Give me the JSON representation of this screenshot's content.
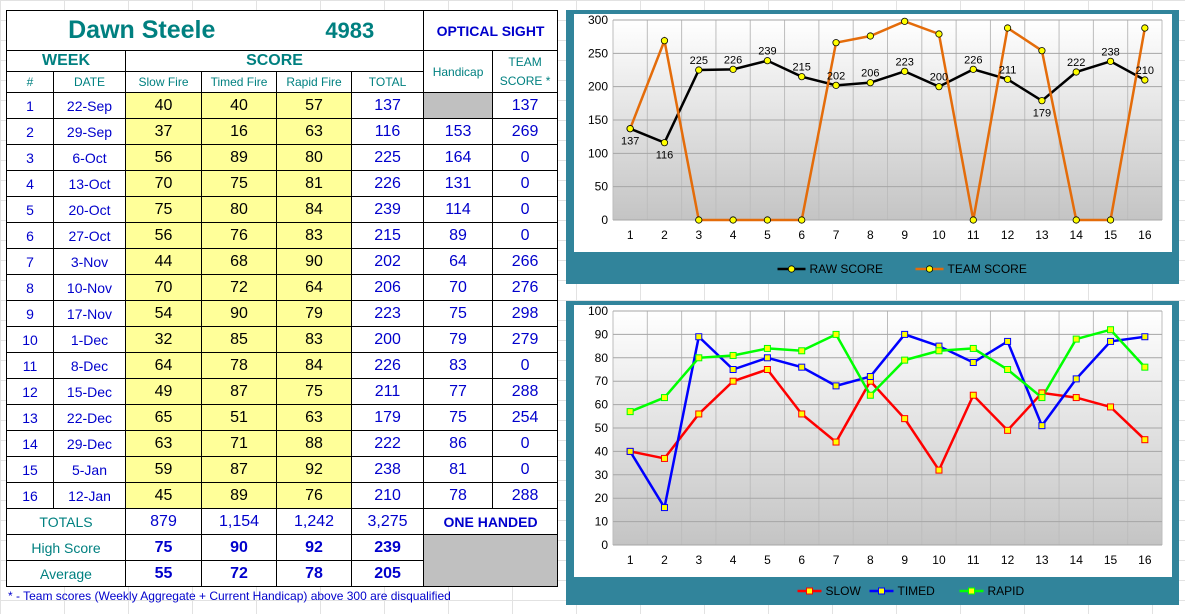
{
  "header": {
    "name": "Dawn Steele",
    "id": "4983",
    "sight": "OPTICAL SIGHT",
    "week": "WEEK",
    "score": "SCORE",
    "handicap": "Handicap",
    "team_score": "TEAM SCORE *",
    "col_num": "#",
    "col_date": "DATE",
    "col_slow": "Slow Fire",
    "col_timed": "Timed Fire",
    "col_rapid": "Rapid Fire",
    "col_total": "TOTAL"
  },
  "rows": [
    {
      "n": "1",
      "date": "22-Sep",
      "slow": "40",
      "timed": "40",
      "rapid": "57",
      "total": "137",
      "hcp": "",
      "team": "137"
    },
    {
      "n": "2",
      "date": "29-Sep",
      "slow": "37",
      "timed": "16",
      "rapid": "63",
      "total": "116",
      "hcp": "153",
      "team": "269"
    },
    {
      "n": "3",
      "date": "6-Oct",
      "slow": "56",
      "timed": "89",
      "rapid": "80",
      "total": "225",
      "hcp": "164",
      "team": "0"
    },
    {
      "n": "4",
      "date": "13-Oct",
      "slow": "70",
      "timed": "75",
      "rapid": "81",
      "total": "226",
      "hcp": "131",
      "team": "0"
    },
    {
      "n": "5",
      "date": "20-Oct",
      "slow": "75",
      "timed": "80",
      "rapid": "84",
      "total": "239",
      "hcp": "114",
      "team": "0"
    },
    {
      "n": "6",
      "date": "27-Oct",
      "slow": "56",
      "timed": "76",
      "rapid": "83",
      "total": "215",
      "hcp": "89",
      "team": "0"
    },
    {
      "n": "7",
      "date": "3-Nov",
      "slow": "44",
      "timed": "68",
      "rapid": "90",
      "total": "202",
      "hcp": "64",
      "team": "266"
    },
    {
      "n": "8",
      "date": "10-Nov",
      "slow": "70",
      "timed": "72",
      "rapid": "64",
      "total": "206",
      "hcp": "70",
      "team": "276"
    },
    {
      "n": "9",
      "date": "17-Nov",
      "slow": "54",
      "timed": "90",
      "rapid": "79",
      "total": "223",
      "hcp": "75",
      "team": "298"
    },
    {
      "n": "10",
      "date": "1-Dec",
      "slow": "32",
      "timed": "85",
      "rapid": "83",
      "total": "200",
      "hcp": "79",
      "team": "279"
    },
    {
      "n": "11",
      "date": "8-Dec",
      "slow": "64",
      "timed": "78",
      "rapid": "84",
      "total": "226",
      "hcp": "83",
      "team": "0"
    },
    {
      "n": "12",
      "date": "15-Dec",
      "slow": "49",
      "timed": "87",
      "rapid": "75",
      "total": "211",
      "hcp": "77",
      "team": "288"
    },
    {
      "n": "13",
      "date": "22-Dec",
      "slow": "65",
      "timed": "51",
      "rapid": "63",
      "total": "179",
      "hcp": "75",
      "team": "254"
    },
    {
      "n": "14",
      "date": "29-Dec",
      "slow": "63",
      "timed": "71",
      "rapid": "88",
      "total": "222",
      "hcp": "86",
      "team": "0"
    },
    {
      "n": "15",
      "date": "5-Jan",
      "slow": "59",
      "timed": "87",
      "rapid": "92",
      "total": "238",
      "hcp": "81",
      "team": "0"
    },
    {
      "n": "16",
      "date": "12-Jan",
      "slow": "45",
      "timed": "89",
      "rapid": "76",
      "total": "210",
      "hcp": "78",
      "team": "288"
    }
  ],
  "totals": {
    "label": "TOTALS",
    "slow": "879",
    "timed": "1,154",
    "rapid": "1,242",
    "total": "3,275",
    "note": "ONE HANDED"
  },
  "high": {
    "label": "High Score",
    "slow": "75",
    "timed": "90",
    "rapid": "92",
    "total": "239"
  },
  "average": {
    "label": "Average",
    "slow": "55",
    "timed": "72",
    "rapid": "78",
    "total": "205"
  },
  "footnote": "* - Team scores (Weekly Aggregate + Current Handicap) above 300 are disqualified",
  "colors": {
    "header_teal": "#008080",
    "value_blue": "#0000cc",
    "score_yellow": "#ffff99",
    "chart_frame": "#31849b",
    "raw": "#000000",
    "team": "#e46c0a",
    "slow": "#ff0000",
    "timed": "#0000ff",
    "rapid": "#00ff00",
    "marker": "#ffff00"
  },
  "chart_data": [
    {
      "type": "line",
      "x": [
        1,
        2,
        3,
        4,
        5,
        6,
        7,
        8,
        9,
        10,
        11,
        12,
        13,
        14,
        15,
        16
      ],
      "ylim": [
        0,
        300
      ],
      "yticks": [
        0,
        50,
        100,
        150,
        200,
        250,
        300
      ],
      "grid": true,
      "legend": "bottom",
      "series": [
        {
          "name": "RAW SCORE",
          "values": [
            137,
            116,
            225,
            226,
            239,
            215,
            202,
            206,
            223,
            200,
            226,
            211,
            179,
            222,
            238,
            210
          ],
          "labels": true
        },
        {
          "name": "TEAM SCORE",
          "values": [
            137,
            269,
            0,
            0,
            0,
            0,
            266,
            276,
            298,
            279,
            0,
            288,
            254,
            0,
            0,
            288
          ],
          "labels": false
        }
      ]
    },
    {
      "type": "line",
      "x": [
        1,
        2,
        3,
        4,
        5,
        6,
        7,
        8,
        9,
        10,
        11,
        12,
        13,
        14,
        15,
        16
      ],
      "ylim": [
        0,
        100
      ],
      "yticks": [
        0,
        10,
        20,
        30,
        40,
        50,
        60,
        70,
        80,
        90,
        100
      ],
      "grid": true,
      "legend": "bottom",
      "series": [
        {
          "name": "SLOW",
          "values": [
            40,
            37,
            56,
            70,
            75,
            56,
            44,
            70,
            54,
            32,
            64,
            49,
            65,
            63,
            59,
            45
          ]
        },
        {
          "name": "TIMED",
          "values": [
            40,
            16,
            89,
            75,
            80,
            76,
            68,
            72,
            90,
            85,
            78,
            87,
            51,
            71,
            87,
            89
          ]
        },
        {
          "name": "RAPID",
          "values": [
            57,
            63,
            80,
            81,
            84,
            83,
            90,
            64,
            79,
            83,
            84,
            75,
            63,
            88,
            92,
            76
          ]
        }
      ]
    }
  ]
}
